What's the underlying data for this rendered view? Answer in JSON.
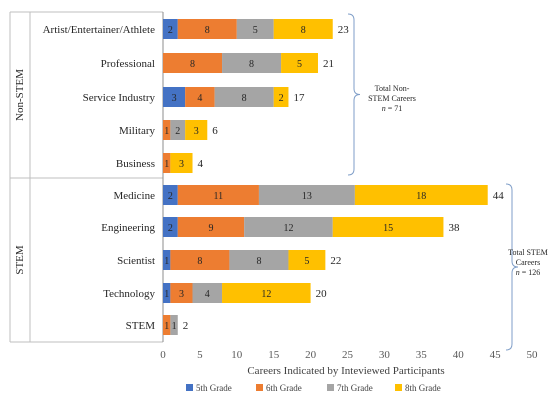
{
  "chart_data": {
    "type": "bar",
    "orientation": "horizontal",
    "stacked": true,
    "xlabel": "Careers Indicated by Inteviewed Participants",
    "xlim": [
      0,
      50
    ],
    "xticks": [
      0,
      5,
      10,
      15,
      20,
      25,
      30,
      35,
      40,
      45,
      50
    ],
    "grid": false,
    "legend_position": "bottom",
    "categories": [
      "Artist/Entertainer/Athlete",
      "Professional",
      "Service Industry",
      "Military",
      "Business",
      "Medicine",
      "Engineering",
      "Scientist",
      "Technology",
      "STEM"
    ],
    "groups": [
      {
        "name": "Non-STEM",
        "categories": [
          "Artist/Entertainer/Athlete",
          "Professional",
          "Service Industry",
          "Military",
          "Business"
        ]
      },
      {
        "name": "STEM",
        "categories": [
          "Medicine",
          "Engineering",
          "Scientist",
          "Technology",
          "STEM"
        ]
      }
    ],
    "series": [
      {
        "name": "5th Grade",
        "color": "#4472C4",
        "values": [
          2,
          0,
          3,
          0,
          0,
          2,
          2,
          1,
          1,
          0
        ]
      },
      {
        "name": "6th Grade",
        "color": "#ED7D31",
        "values": [
          8,
          8,
          4,
          1,
          1,
          11,
          9,
          8,
          3,
          1
        ]
      },
      {
        "name": "7th Grade",
        "color": "#A5A5A5",
        "values": [
          5,
          8,
          8,
          2,
          0,
          13,
          12,
          8,
          4,
          1
        ]
      },
      {
        "name": "8th Grade",
        "color": "#FFC000",
        "values": [
          8,
          5,
          2,
          3,
          3,
          18,
          15,
          5,
          12,
          0
        ]
      }
    ],
    "totals": [
      23,
      21,
      17,
      6,
      4,
      44,
      38,
      22,
      20,
      2
    ],
    "annotations": [
      {
        "lines": [
          "Total Non-",
          "STEM Careers"
        ],
        "n_label": "n",
        "n_value": "= 71"
      },
      {
        "lines": [
          "Total STEM",
          "Careers"
        ],
        "n_label": "n",
        "n_value": "= 126"
      }
    ]
  }
}
